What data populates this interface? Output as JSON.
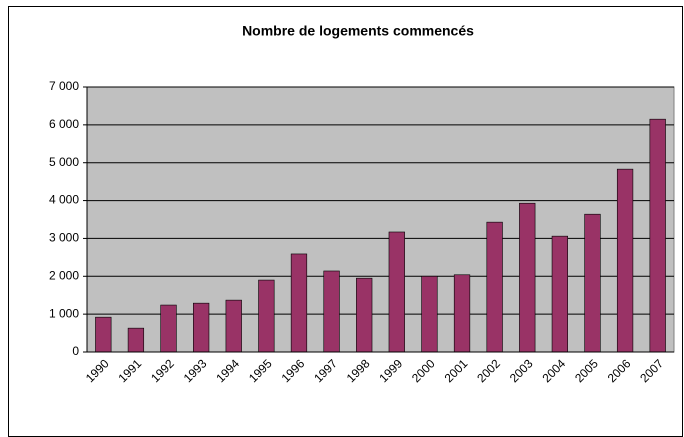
{
  "chart_data": {
    "type": "bar",
    "title": "Nombre de logements commencés",
    "categories": [
      "1990",
      "1991",
      "1992",
      "1993",
      "1994",
      "1995",
      "1996",
      "1997",
      "1998",
      "1999",
      "2000",
      "2001",
      "2002",
      "2003",
      "2004",
      "2005",
      "2006",
      "2007"
    ],
    "values": [
      920,
      630,
      1240,
      1290,
      1370,
      1900,
      2590,
      2140,
      1950,
      3170,
      2000,
      2040,
      3430,
      3930,
      3060,
      3640,
      4830,
      6150
    ],
    "color": "#993366",
    "ylim": [
      0,
      7000
    ],
    "yticks": [
      0,
      {
        "value": 1000,
        "label": "1 000"
      },
      {
        "value": 2000,
        "label": "2 000"
      },
      {
        "value": 3000,
        "label": "3 000"
      },
      {
        "value": 4000,
        "label": "4 000"
      },
      {
        "value": 5000,
        "label": "5 000"
      },
      {
        "value": 6000,
        "label": "6 000"
      },
      {
        "value": 7000,
        "label": "7 000"
      }
    ],
    "grid": true
  }
}
